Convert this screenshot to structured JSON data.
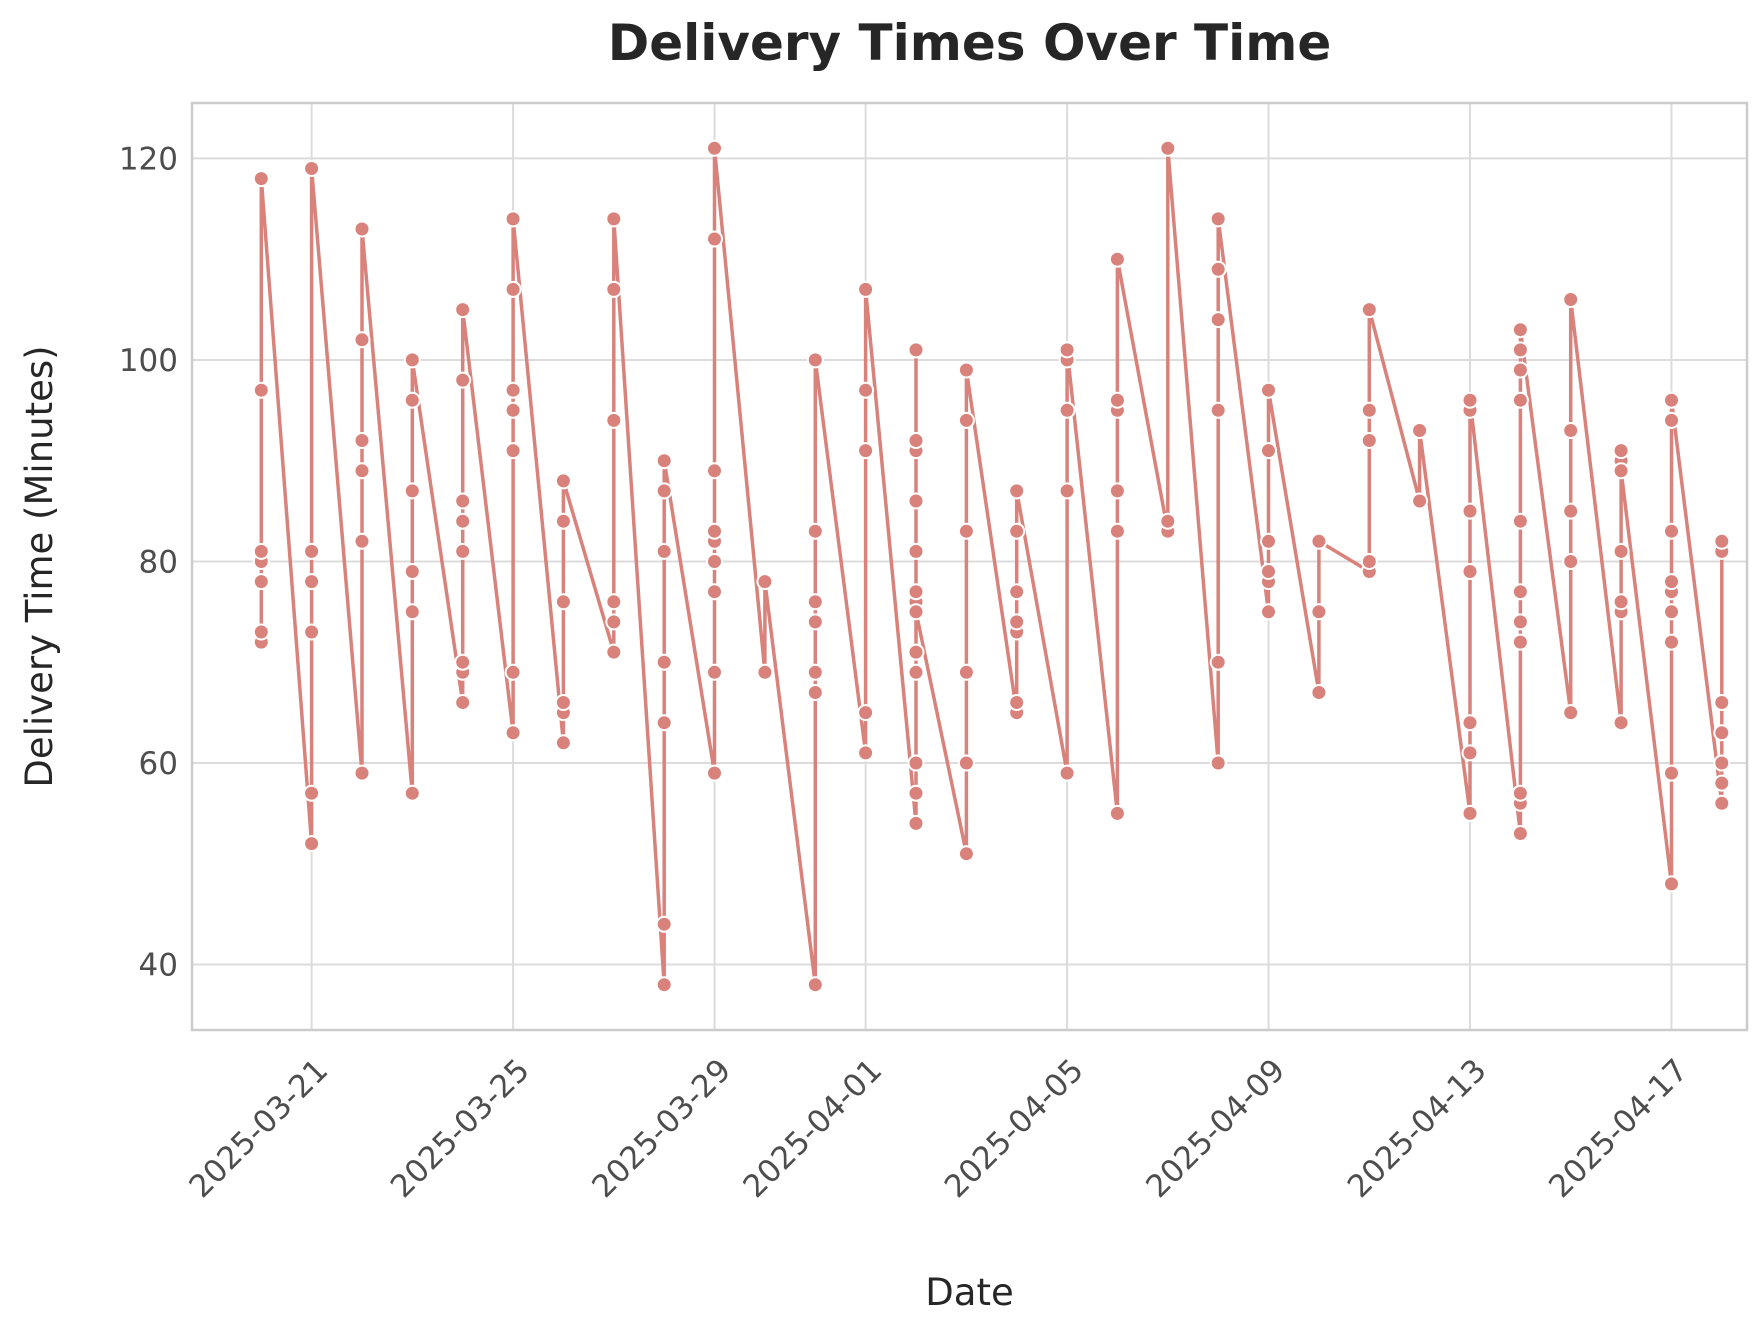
{
  "chart_data": {
    "type": "line",
    "title": "Delivery Times Over Time",
    "xlabel": "Date",
    "ylabel": "Delivery Time (Minutes)",
    "x_tick_labels": [
      "2025-03-21",
      "2025-03-25",
      "2025-03-29",
      "2025-04-01",
      "2025-04-05",
      "2025-04-09",
      "2025-04-13",
      "2025-04-17"
    ],
    "y_tick_labels": [
      "40",
      "60",
      "80",
      "100",
      "120"
    ],
    "xlim": [
      "2025-03-18 15:00",
      "2025-04-18 12:00"
    ],
    "ylim": [
      33.5,
      125.5
    ],
    "grid": true,
    "legend": "none",
    "color": "#d8827b",
    "x": [
      "2025-03-20",
      "2025-03-20",
      "2025-03-20",
      "2025-03-20",
      "2025-03-20",
      "2025-03-20",
      "2025-03-20",
      "2025-03-21",
      "2025-03-21",
      "2025-03-21",
      "2025-03-21",
      "2025-03-21",
      "2025-03-21",
      "2025-03-22",
      "2025-03-22",
      "2025-03-22",
      "2025-03-22",
      "2025-03-22",
      "2025-03-22",
      "2025-03-23",
      "2025-03-23",
      "2025-03-23",
      "2025-03-23",
      "2025-03-23",
      "2025-03-23",
      "2025-03-24",
      "2025-03-24",
      "2025-03-24",
      "2025-03-24",
      "2025-03-24",
      "2025-03-24",
      "2025-03-24",
      "2025-03-24",
      "2025-03-25",
      "2025-03-25",
      "2025-03-25",
      "2025-03-25",
      "2025-03-25",
      "2025-03-25",
      "2025-03-25",
      "2025-03-26",
      "2025-03-26",
      "2025-03-26",
      "2025-03-26",
      "2025-03-26",
      "2025-03-26",
      "2025-03-27",
      "2025-03-27",
      "2025-03-27",
      "2025-03-27",
      "2025-03-27",
      "2025-03-27",
      "2025-03-28",
      "2025-03-28",
      "2025-03-28",
      "2025-03-28",
      "2025-03-28",
      "2025-03-28",
      "2025-03-28",
      "2025-03-29",
      "2025-03-29",
      "2025-03-29",
      "2025-03-29",
      "2025-03-29",
      "2025-03-29",
      "2025-03-29",
      "2025-03-29",
      "2025-03-29",
      "2025-03-30",
      "2025-03-30",
      "2025-03-31",
      "2025-03-31",
      "2025-03-31",
      "2025-03-31",
      "2025-03-31",
      "2025-03-31",
      "2025-03-31",
      "2025-04-01",
      "2025-04-01",
      "2025-04-01",
      "2025-04-01",
      "2025-04-01",
      "2025-04-02",
      "2025-04-02",
      "2025-04-02",
      "2025-04-02",
      "2025-04-02",
      "2025-04-02",
      "2025-04-02",
      "2025-04-02",
      "2025-04-02",
      "2025-04-02",
      "2025-04-02",
      "2025-04-02",
      "2025-04-02",
      "2025-04-03",
      "2025-04-03",
      "2025-04-03",
      "2025-04-03",
      "2025-04-03",
      "2025-04-03",
      "2025-04-04",
      "2025-04-04",
      "2025-04-04",
      "2025-04-04",
      "2025-04-04",
      "2025-04-04",
      "2025-04-04",
      "2025-04-05",
      "2025-04-05",
      "2025-04-05",
      "2025-04-05",
      "2025-04-05",
      "2025-04-06",
      "2025-04-06",
      "2025-04-06",
      "2025-04-06",
      "2025-04-06",
      "2025-04-06",
      "2025-04-07",
      "2025-04-07",
      "2025-04-07",
      "2025-04-08",
      "2025-04-08",
      "2025-04-08",
      "2025-04-08",
      "2025-04-08",
      "2025-04-08",
      "2025-04-09",
      "2025-04-09",
      "2025-04-09",
      "2025-04-09",
      "2025-04-09",
      "2025-04-09",
      "2025-04-10",
      "2025-04-10",
      "2025-04-10",
      "2025-04-11",
      "2025-04-11",
      "2025-04-11",
      "2025-04-11",
      "2025-04-11",
      "2025-04-12",
      "2025-04-12",
      "2025-04-13",
      "2025-04-13",
      "2025-04-13",
      "2025-04-13",
      "2025-04-13",
      "2025-04-13",
      "2025-04-13",
      "2025-04-14",
      "2025-04-14",
      "2025-04-14",
      "2025-04-14",
      "2025-04-14",
      "2025-04-14",
      "2025-04-14",
      "2025-04-14",
      "2025-04-14",
      "2025-04-14",
      "2025-04-14",
      "2025-04-15",
      "2025-04-15",
      "2025-04-15",
      "2025-04-15",
      "2025-04-15",
      "2025-04-16",
      "2025-04-16",
      "2025-04-16",
      "2025-04-16",
      "2025-04-16",
      "2025-04-16",
      "2025-04-16",
      "2025-04-17",
      "2025-04-17",
      "2025-04-17",
      "2025-04-17",
      "2025-04-17",
      "2025-04-17",
      "2025-04-17",
      "2025-04-17",
      "2025-04-17",
      "2025-04-18",
      "2025-04-18",
      "2025-04-18",
      "2025-04-18",
      "2025-04-18",
      "2025-04-18",
      "2025-04-18"
    ],
    "y": [
      72,
      73,
      78,
      80,
      81,
      97,
      118,
      52,
      57,
      73,
      78,
      81,
      119,
      59,
      82,
      89,
      92,
      102,
      113,
      57,
      75,
      79,
      87,
      96,
      100,
      66,
      69,
      70,
      81,
      84,
      86,
      98,
      105,
      63,
      69,
      91,
      95,
      97,
      107,
      114,
      62,
      65,
      66,
      76,
      84,
      88,
      71,
      74,
      76,
      94,
      107,
      114,
      38,
      44,
      64,
      70,
      81,
      87,
      90,
      59,
      69,
      77,
      80,
      82,
      83,
      89,
      112,
      121,
      69,
      78,
      38,
      67,
      69,
      74,
      76,
      83,
      100,
      61,
      65,
      91,
      97,
      107,
      54,
      57,
      60,
      69,
      71,
      76,
      77,
      81,
      86,
      91,
      92,
      101,
      75,
      51,
      60,
      69,
      83,
      94,
      99,
      65,
      66,
      73,
      74,
      77,
      83,
      87,
      59,
      87,
      95,
      100,
      101,
      55,
      83,
      87,
      95,
      96,
      110,
      83,
      84,
      121,
      60,
      70,
      95,
      104,
      109,
      114,
      75,
      78,
      79,
      82,
      91,
      97,
      67,
      75,
      82,
      79,
      80,
      92,
      95,
      105,
      86,
      93,
      55,
      61,
      64,
      79,
      85,
      95,
      96,
      53,
      56,
      57,
      72,
      74,
      77,
      84,
      96,
      99,
      101,
      103,
      65,
      80,
      85,
      93,
      106,
      64,
      75,
      76,
      81,
      90,
      91,
      89,
      48,
      59,
      72,
      75,
      77,
      78,
      83,
      94,
      96,
      56,
      58,
      60,
      63,
      66,
      81,
      82
    ]
  }
}
